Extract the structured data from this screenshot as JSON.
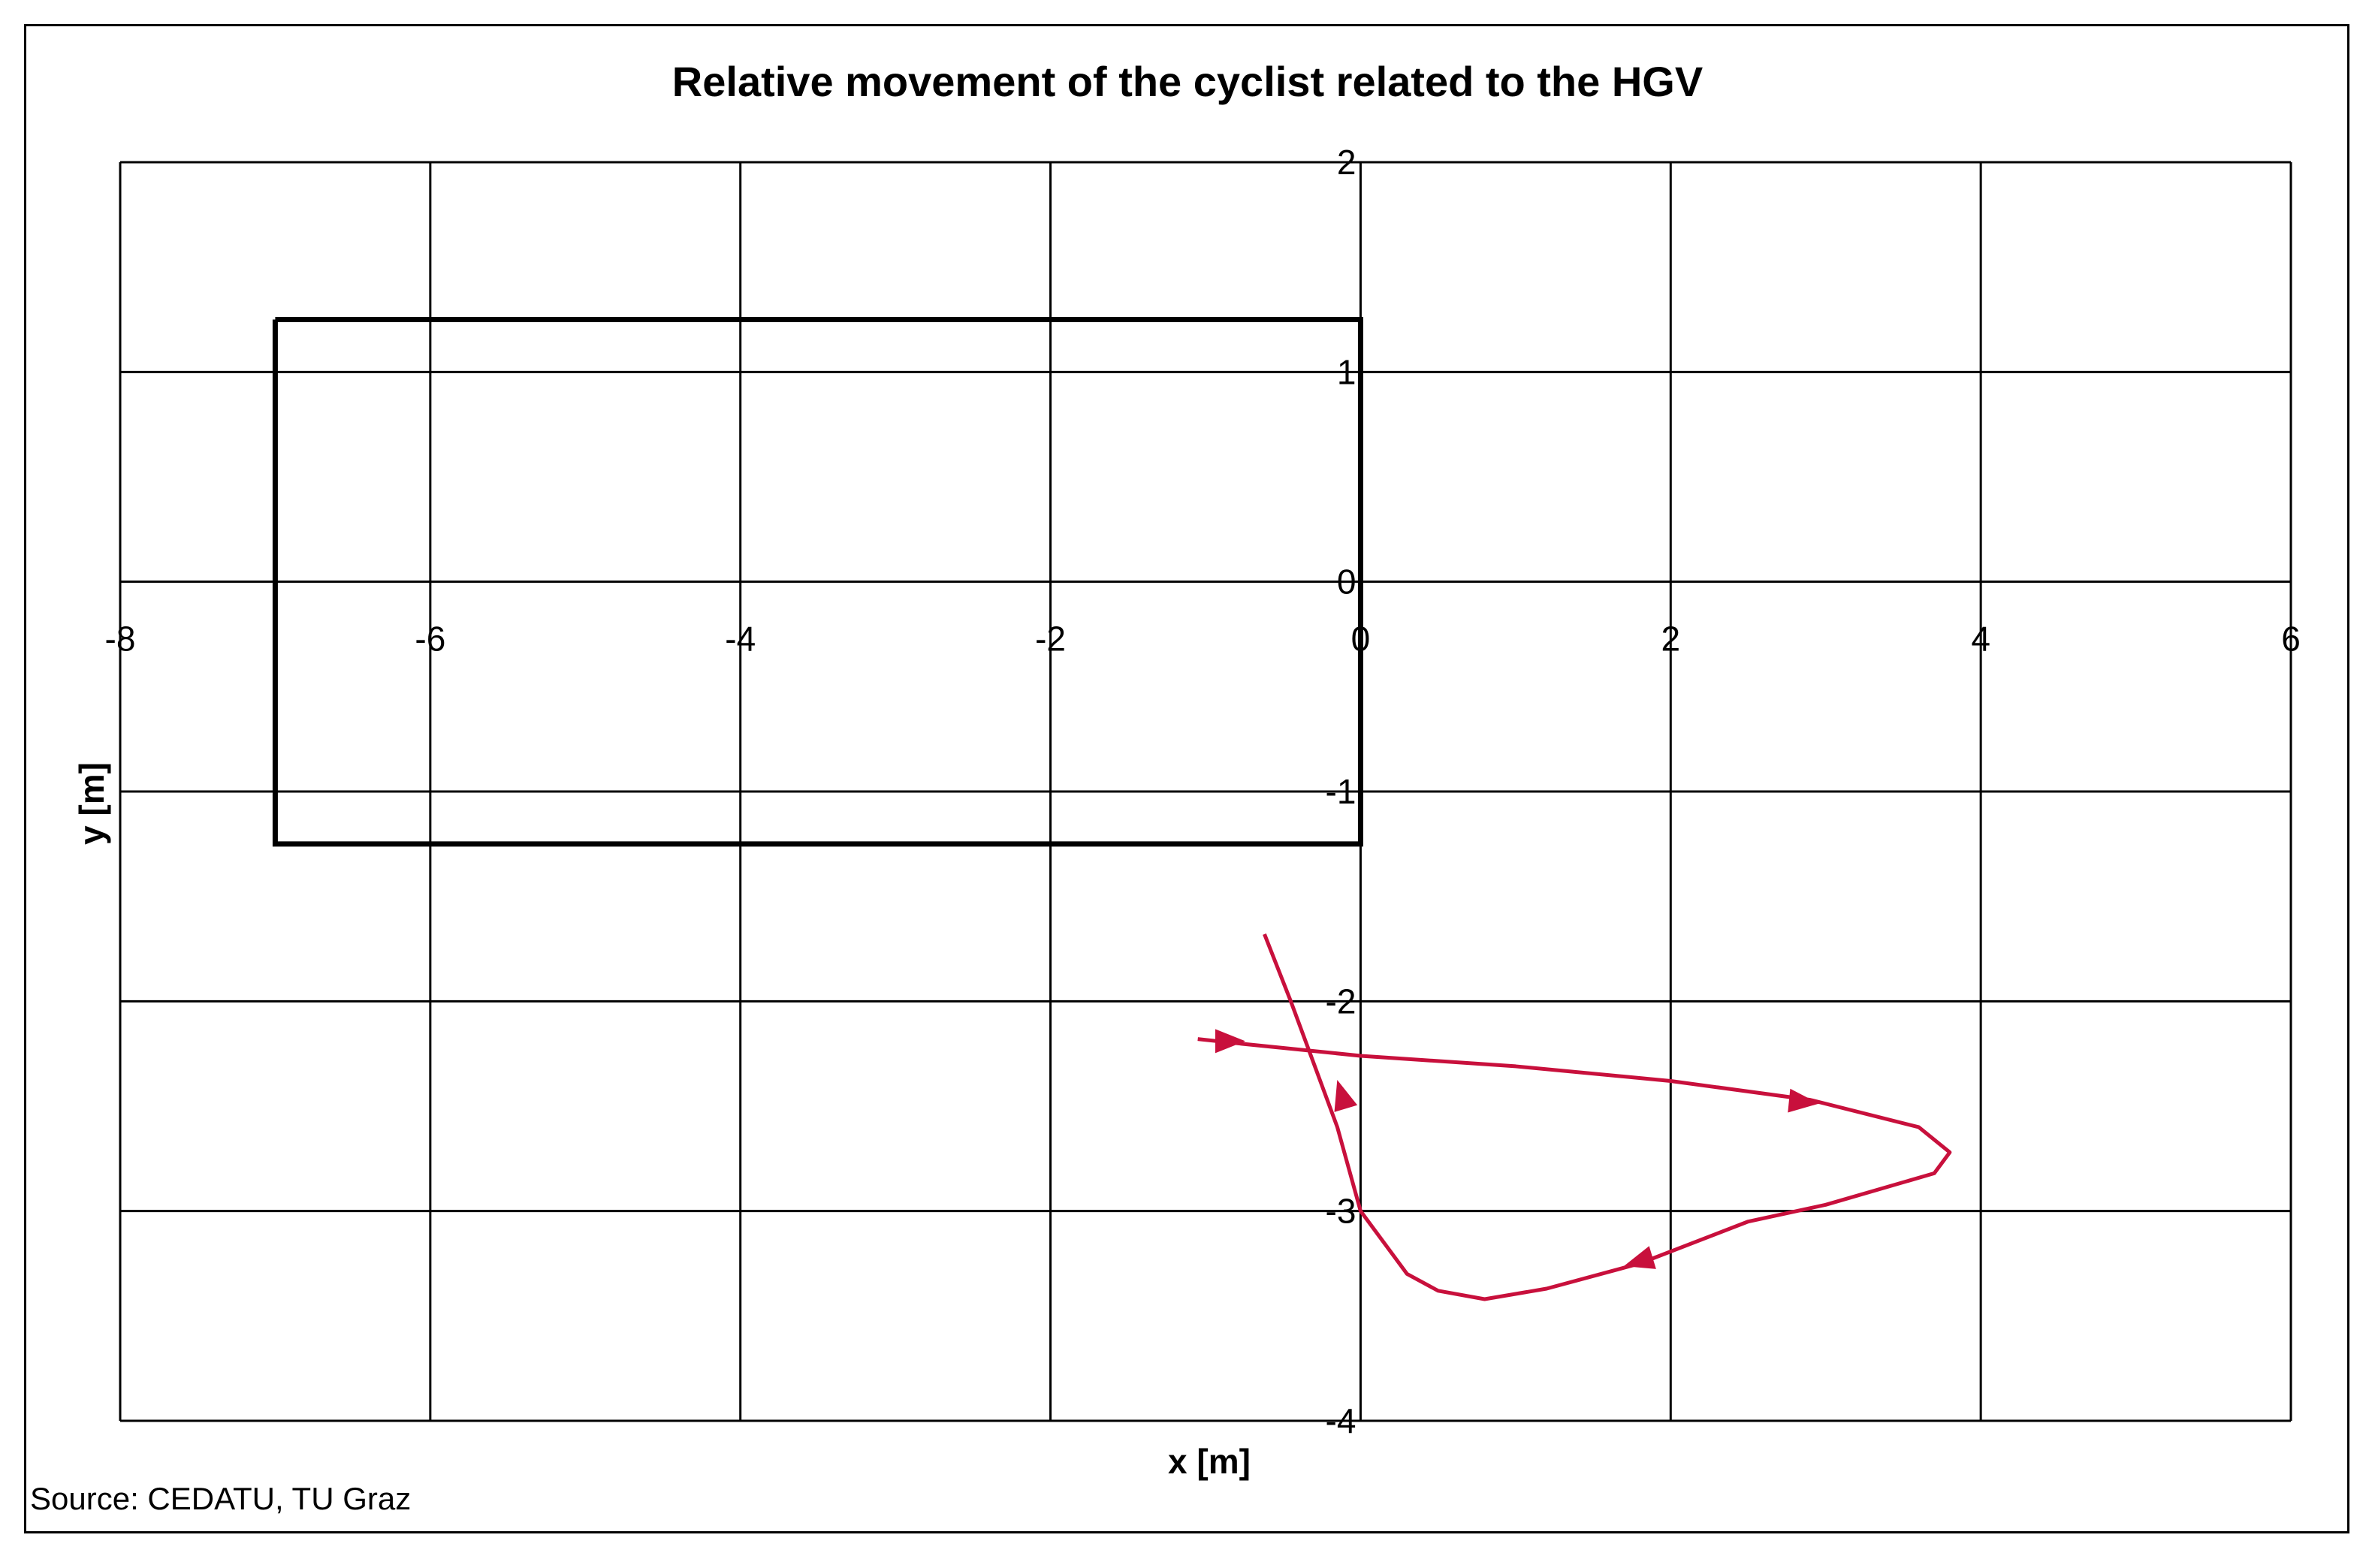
{
  "chart_data": {
    "type": "line",
    "title": "Relative movement of the cyclist related to the HGV",
    "xlabel": "x [m]",
    "ylabel": "y [m]",
    "xlim": [
      -8,
      6
    ],
    "ylim": [
      -4,
      2
    ],
    "x_ticks": [
      "-8",
      "-6",
      "-4",
      "-2",
      "0",
      "2",
      "4",
      "6"
    ],
    "y_ticks": [
      "2",
      "1",
      "0",
      "-1",
      "-2",
      "-3",
      "-4"
    ],
    "grid": true,
    "vehicle_outline": {
      "x": [
        -7,
        0,
        0,
        -7,
        -7
      ],
      "y": [
        1.25,
        1.25,
        -1.25,
        -1.25,
        1.25
      ]
    },
    "series": [
      {
        "color": "#c8103c",
        "x": [
          -1.05,
          -0.8,
          0.0,
          1.0,
          2.0,
          2.9,
          3.6,
          3.8,
          3.7,
          3.0,
          2.5,
          1.8,
          1.2,
          0.8,
          0.5,
          0.3,
          0.0,
          -0.15,
          -0.3,
          -0.45,
          -0.62
        ],
        "y": [
          -2.18,
          -2.2,
          -2.26,
          -2.31,
          -2.38,
          -2.47,
          -2.6,
          -2.72,
          -2.82,
          -2.97,
          -3.05,
          -3.25,
          -3.37,
          -3.42,
          -3.38,
          -3.3,
          -3.0,
          -2.6,
          -2.3,
          -2.0,
          -1.68
        ]
      }
    ],
    "direction_arrows": [
      {
        "x": -0.85,
        "y": -2.19,
        "dx": 1,
        "dy": 0.0
      },
      {
        "x": 2.85,
        "y": -2.48,
        "dx": 1,
        "dy": -0.1
      },
      {
        "x": 1.8,
        "y": -3.24,
        "dx": -1,
        "dy": -0.3
      },
      {
        "x": -0.12,
        "y": -2.45,
        "dx": -0.3,
        "dy": 1
      }
    ]
  },
  "source": "Source: CEDATU, TU Graz"
}
